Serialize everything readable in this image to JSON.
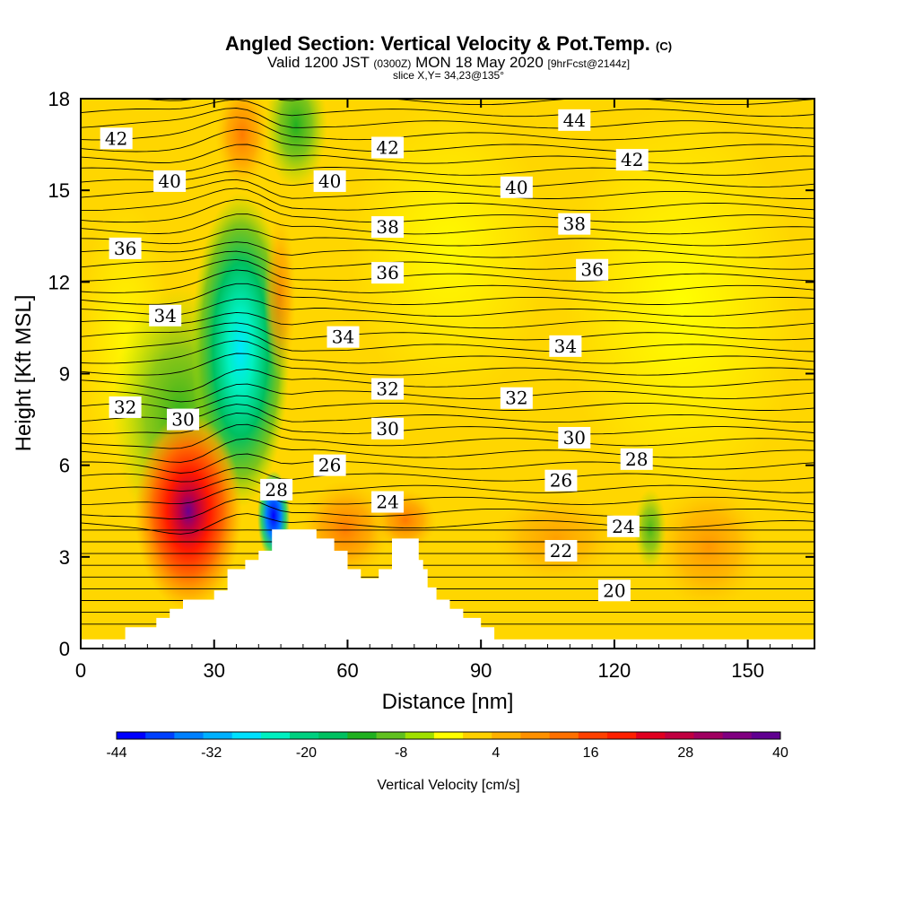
{
  "title": {
    "main": "Angled Section: Vertical Velocity & Pot.Temp.",
    "copyright": "(C)",
    "valid_prefix": "Valid 1200 JST",
    "utc": "(0300Z)",
    "valid_date": "MON 18 May 2020",
    "forecast": "[9hrFcst@2144z]",
    "slice": "slice X,Y= 34,23@135°"
  },
  "chart_data": {
    "type": "heatmap",
    "xlabel": "Distance [nm]",
    "ylabel": "Height [Kft MSL]",
    "xlim": [
      0,
      165
    ],
    "ylim": [
      0,
      18
    ],
    "x_ticks": [
      0,
      30,
      60,
      90,
      120,
      150
    ],
    "y_ticks": [
      0,
      3,
      6,
      9,
      12,
      15,
      18
    ],
    "colorbar": {
      "label": "Vertical Velocity [cm/s]",
      "range": [
        -44,
        40
      ],
      "tick_labels": [
        "-44",
        "-32",
        "-20",
        "-8",
        "4",
        "16",
        "28",
        "40"
      ],
      "colors": [
        "#0000ff",
        "#0040ff",
        "#0080ff",
        "#00b0ff",
        "#00e0ff",
        "#00f0c0",
        "#00d080",
        "#00c060",
        "#20b020",
        "#60c020",
        "#a0e000",
        "#ffff00",
        "#ffd000",
        "#ffb000",
        "#ff9000",
        "#ff7000",
        "#ff4000",
        "#ff2000",
        "#e00020",
        "#c00040",
        "#a00060",
        "#800080",
        "#600090"
      ]
    },
    "terrain_top_kft": [
      [
        0,
        0.3
      ],
      [
        10,
        0.3
      ],
      [
        10,
        0.7
      ],
      [
        17,
        0.7
      ],
      [
        17,
        1.0
      ],
      [
        20,
        1.0
      ],
      [
        20,
        1.3
      ],
      [
        23,
        1.3
      ],
      [
        23,
        1.6
      ],
      [
        30,
        1.6
      ],
      [
        30,
        1.9
      ],
      [
        33,
        1.9
      ],
      [
        33,
        2.6
      ],
      [
        37,
        2.6
      ],
      [
        37,
        2.9
      ],
      [
        40,
        2.9
      ],
      [
        40,
        3.2
      ],
      [
        43,
        3.2
      ],
      [
        43,
        3.9
      ],
      [
        53,
        3.9
      ],
      [
        53,
        3.6
      ],
      [
        57,
        3.6
      ],
      [
        57,
        3.2
      ],
      [
        60,
        3.2
      ],
      [
        60,
        2.6
      ],
      [
        63,
        2.6
      ],
      [
        63,
        2.3
      ],
      [
        67,
        2.3
      ],
      [
        67,
        2.6
      ],
      [
        70,
        2.6
      ],
      [
        70,
        3.6
      ],
      [
        76,
        3.6
      ],
      [
        76,
        2.9
      ],
      [
        77,
        2.9
      ],
      [
        77,
        2.6
      ],
      [
        78,
        2.6
      ],
      [
        78,
        2.0
      ],
      [
        80,
        2.0
      ],
      [
        80,
        1.6
      ],
      [
        83,
        1.6
      ],
      [
        83,
        1.3
      ],
      [
        86,
        1.3
      ],
      [
        86,
        1.0
      ],
      [
        90,
        1.0
      ],
      [
        90,
        0.7
      ],
      [
        93,
        0.7
      ],
      [
        93,
        0.3
      ],
      [
        165,
        0.3
      ]
    ],
    "warm_updraft_core": {
      "x": 23,
      "y": 4.5,
      "peak_cm_s": 40
    },
    "cold_downdraft_core": {
      "x": 36,
      "y": 9.5,
      "min_cm_s": -32
    },
    "theta_contour_labels": [
      {
        "text": "42",
        "x": 8,
        "y": 16.7
      },
      {
        "text": "40",
        "x": 20,
        "y": 15.3
      },
      {
        "text": "36",
        "x": 10,
        "y": 13.1
      },
      {
        "text": "34",
        "x": 19,
        "y": 10.9
      },
      {
        "text": "32",
        "x": 10,
        "y": 7.9
      },
      {
        "text": "30",
        "x": 23,
        "y": 7.5
      },
      {
        "text": "28",
        "x": 44,
        "y": 5.2
      },
      {
        "text": "42",
        "x": 69,
        "y": 16.4
      },
      {
        "text": "40",
        "x": 56,
        "y": 15.3
      },
      {
        "text": "38",
        "x": 69,
        "y": 13.8
      },
      {
        "text": "36",
        "x": 69,
        "y": 12.3
      },
      {
        "text": "34",
        "x": 59,
        "y": 10.2
      },
      {
        "text": "32",
        "x": 69,
        "y": 8.5
      },
      {
        "text": "30",
        "x": 69,
        "y": 7.2
      },
      {
        "text": "26",
        "x": 56,
        "y": 6.0
      },
      {
        "text": "24",
        "x": 69,
        "y": 4.8
      },
      {
        "text": "44",
        "x": 111,
        "y": 17.3
      },
      {
        "text": "42",
        "x": 124,
        "y": 16.0
      },
      {
        "text": "40",
        "x": 98,
        "y": 15.1
      },
      {
        "text": "38",
        "x": 111,
        "y": 13.9
      },
      {
        "text": "36",
        "x": 115,
        "y": 12.4
      },
      {
        "text": "34",
        "x": 109,
        "y": 9.9
      },
      {
        "text": "32",
        "x": 98,
        "y": 8.2
      },
      {
        "text": "30",
        "x": 111,
        "y": 6.9
      },
      {
        "text": "28",
        "x": 125,
        "y": 6.2
      },
      {
        "text": "26",
        "x": 108,
        "y": 5.5
      },
      {
        "text": "24",
        "x": 122,
        "y": 4.0
      },
      {
        "text": "22",
        "x": 108,
        "y": 3.2
      },
      {
        "text": "20",
        "x": 120,
        "y": 1.9
      }
    ]
  }
}
